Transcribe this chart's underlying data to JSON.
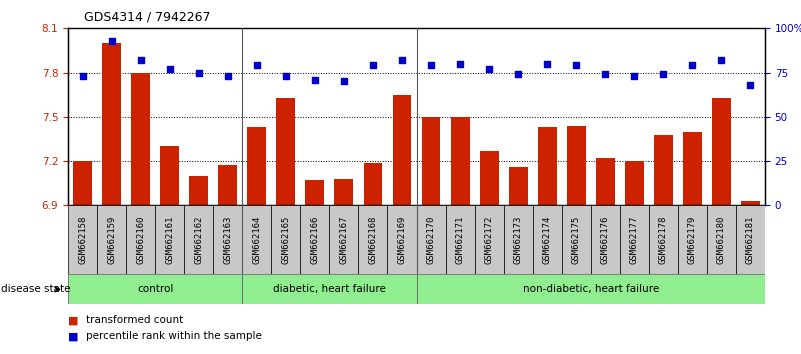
{
  "title": "GDS4314 / 7942267",
  "samples": [
    "GSM662158",
    "GSM662159",
    "GSM662160",
    "GSM662161",
    "GSM662162",
    "GSM662163",
    "GSM662164",
    "GSM662165",
    "GSM662166",
    "GSM662167",
    "GSM662168",
    "GSM662169",
    "GSM662170",
    "GSM662171",
    "GSM662172",
    "GSM662173",
    "GSM662174",
    "GSM662175",
    "GSM662176",
    "GSM662177",
    "GSM662178",
    "GSM662179",
    "GSM662180",
    "GSM662181"
  ],
  "bar_values": [
    7.2,
    8.0,
    7.8,
    7.3,
    7.1,
    7.17,
    7.43,
    7.63,
    7.07,
    7.08,
    7.19,
    7.65,
    7.5,
    7.5,
    7.27,
    7.16,
    7.43,
    7.44,
    7.22,
    7.2,
    7.38,
    7.4,
    7.63,
    6.93
  ],
  "percentile_values": [
    73,
    93,
    82,
    77,
    75,
    73,
    79,
    73,
    71,
    70,
    79,
    82,
    79,
    80,
    77,
    74,
    80,
    79,
    74,
    73,
    74,
    79,
    82,
    68
  ],
  "bar_color": "#cc2200",
  "dot_color": "#0000cc",
  "ymin": 6.9,
  "ymax": 8.1,
  "y2min": 0,
  "y2max": 100,
  "yticks": [
    6.9,
    7.2,
    7.5,
    7.8,
    8.1
  ],
  "y2ticks": [
    0,
    25,
    50,
    75,
    100
  ],
  "y2ticklabels": [
    "0",
    "25",
    "50",
    "75",
    "100%"
  ],
  "group_configs": [
    {
      "label": "control",
      "start": 0,
      "end": 5
    },
    {
      "label": "diabetic, heart failure",
      "start": 6,
      "end": 11
    },
    {
      "label": "non-diabetic, heart failure",
      "start": 12,
      "end": 23
    }
  ],
  "group_dividers": [
    5.5,
    11.5
  ],
  "disease_state_label": "disease state",
  "legend_bar_label": "transformed count",
  "legend_dot_label": "percentile rank within the sample",
  "background_color": "#ffffff",
  "plot_bg_color": "#ffffff",
  "tick_label_color_left": "#cc2200",
  "tick_label_color_right": "#0000cc",
  "green_color": "#90ee90",
  "gray_color": "#c8c8c8",
  "title_fontsize": 9,
  "label_fontsize": 7.5,
  "tick_fontsize": 7.5,
  "sample_fontsize": 6.5
}
